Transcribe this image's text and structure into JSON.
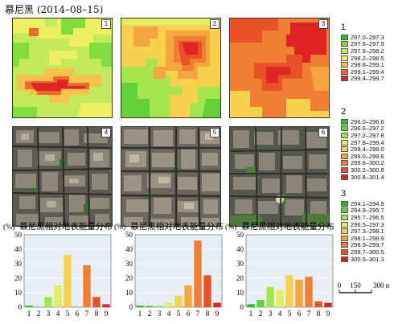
{
  "title": "慕尼黑 (2014–08–15)",
  "panels": {
    "thermal_labels": [
      "1",
      "2",
      "3"
    ],
    "aerial_labels": [
      "4",
      "5",
      "6"
    ]
  },
  "legends": [
    {
      "title": "1",
      "entries": [
        {
          "label": "297.0–297.3",
          "color": "#22c11e"
        },
        {
          "label": "297.6–297.9",
          "color": "#82dc3c"
        },
        {
          "label": "297.9–298.2",
          "color": "#c3ea5a"
        },
        {
          "label": "298.2–298.5",
          "color": "#eef062"
        },
        {
          "label": "298.8–299.1",
          "color": "#f5c34b"
        },
        {
          "label": "299.1–299.4",
          "color": "#ef6a2a"
        },
        {
          "label": "299.4–299.7",
          "color": "#e32424"
        }
      ]
    },
    {
      "title": "2",
      "entries": [
        {
          "label": "296.0–296.6",
          "color": "#22c11e"
        },
        {
          "label": "296.6–297.2",
          "color": "#63d23a"
        },
        {
          "label": "297.2–297.8",
          "color": "#a4e44c"
        },
        {
          "label": "297.8–298.4",
          "color": "#e4ee5e"
        },
        {
          "label": "298.4–299.0",
          "color": "#f5d14e"
        },
        {
          "label": "299.0–299.6",
          "color": "#f4a540"
        },
        {
          "label": "299.6–300.2",
          "color": "#ef7f33"
        },
        {
          "label": "300.2–300.8",
          "color": "#e85226"
        },
        {
          "label": "300.8–301.4",
          "color": "#e02424"
        }
      ]
    },
    {
      "title": "3",
      "entries": [
        {
          "label": "294.1–294.9",
          "color": "#22c11e"
        },
        {
          "label": "294.9–295.7",
          "color": "#63d23a"
        },
        {
          "label": "295.7–296.5",
          "color": "#a4e44c"
        },
        {
          "label": "296.5–297.3",
          "color": "#e4ee5e"
        },
        {
          "label": "297.3–298.1",
          "color": "#f5d14e"
        },
        {
          "label": "298.1–298.9",
          "color": "#f4a540"
        },
        {
          "label": "298.9–299.7",
          "color": "#ef7f33"
        },
        {
          "label": "299.7–300.5",
          "color": "#e85226"
        },
        {
          "label": "300.5–301.3",
          "color": "#e02424"
        }
      ]
    }
  ],
  "scale_bar": {
    "labels": [
      "0",
      "150",
      "300 m"
    ]
  },
  "chart_data": [
    {
      "type": "bar",
      "title": "慕尼黑相对地表能量分布",
      "ylabel": "(%)",
      "ylim": [
        0,
        50
      ],
      "yticks": [
        0,
        10,
        20,
        30,
        40,
        50
      ],
      "categories": [
        "1",
        "2",
        "3",
        "4",
        "5",
        "6",
        "7",
        "8",
        "9"
      ],
      "values": [
        1,
        0,
        7,
        15,
        36,
        0,
        29,
        7,
        2
      ],
      "colors": [
        "#22c11e",
        "#63d23a",
        "#a4e44c",
        "#e4ee5e",
        "#f5d14e",
        "#f4a540",
        "#ef7f33",
        "#e85226",
        "#e02424"
      ],
      "grid": true
    },
    {
      "type": "bar",
      "title": "慕尼黑相对地表能量分布",
      "ylabel": "(%)",
      "ylim": [
        0,
        50
      ],
      "yticks": [
        0,
        10,
        20,
        30,
        40,
        50
      ],
      "categories": [
        "1",
        "2",
        "3",
        "4",
        "5",
        "6",
        "7",
        "8",
        "9"
      ],
      "values": [
        1,
        1,
        1,
        3,
        8,
        15,
        46,
        22,
        3
      ],
      "colors": [
        "#22c11e",
        "#63d23a",
        "#a4e44c",
        "#e4ee5e",
        "#f5d14e",
        "#f4a540",
        "#ef7f33",
        "#e85226",
        "#e02424"
      ],
      "grid": true
    },
    {
      "type": "bar",
      "title": "慕尼黑相对地表能量分布",
      "ylabel": "(%)",
      "ylim": [
        0,
        50
      ],
      "yticks": [
        0,
        10,
        20,
        30,
        40,
        50
      ],
      "categories": [
        "1",
        "2",
        "3",
        "4",
        "5",
        "6",
        "7",
        "8",
        "9"
      ],
      "values": [
        2,
        5,
        14,
        12,
        22,
        19,
        21,
        4,
        3
      ],
      "colors": [
        "#22c11e",
        "#63d23a",
        "#a4e44c",
        "#e4ee5e",
        "#f5d14e",
        "#f4a540",
        "#ef7f33",
        "#e85226",
        "#e02424"
      ],
      "grid": true
    }
  ]
}
